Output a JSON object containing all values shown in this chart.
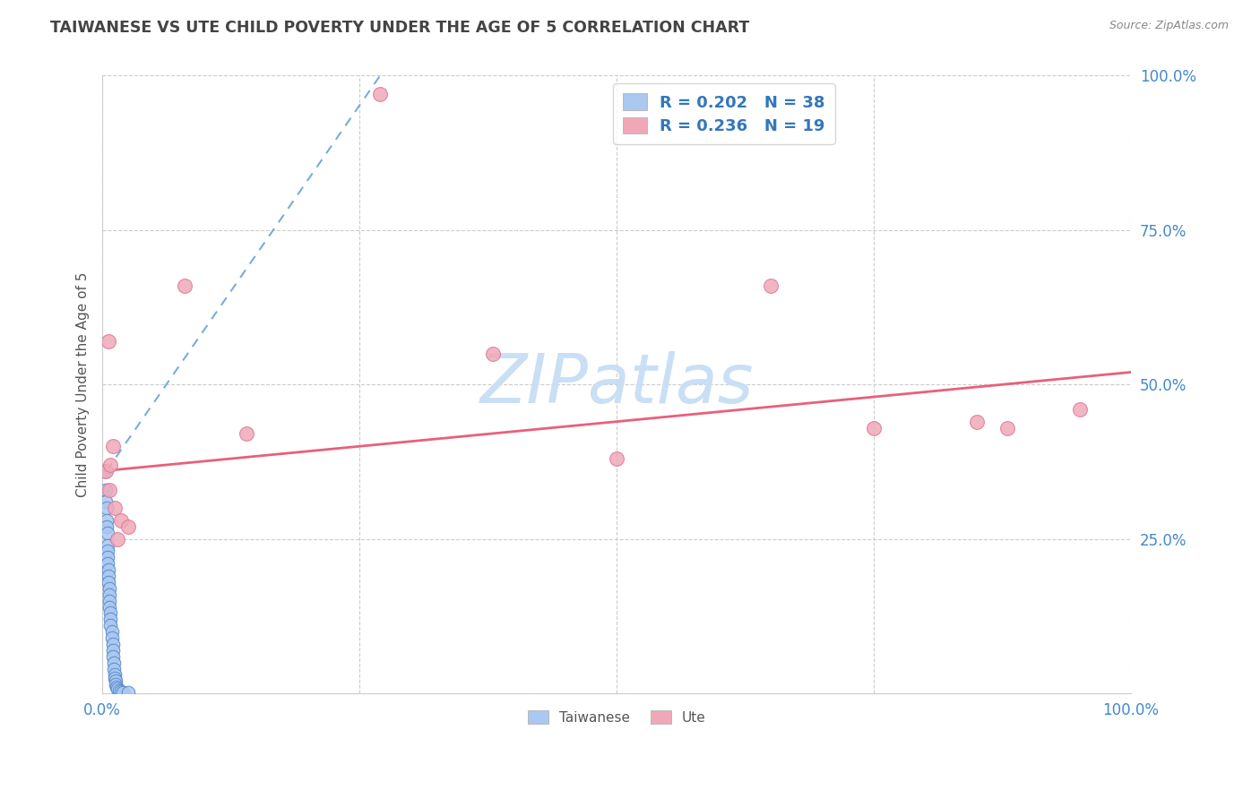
{
  "title": "TAIWANESE VS UTE CHILD POVERTY UNDER THE AGE OF 5 CORRELATION CHART",
  "source": "Source: ZipAtlas.com",
  "ylabel": "Child Poverty Under the Age of 5",
  "xlim": [
    0,
    1
  ],
  "ylim": [
    0,
    1
  ],
  "xticks": [
    0.0,
    0.25,
    0.5,
    0.75,
    1.0
  ],
  "yticks": [
    0.0,
    0.25,
    0.5,
    0.75,
    1.0
  ],
  "xtick_labels_bottom": [
    "0.0%",
    "",
    "",
    "",
    "100.0%"
  ],
  "ytick_labels_right": [
    "",
    "25.0%",
    "50.0%",
    "75.0%",
    "100.0%"
  ],
  "taiwanese_R": 0.202,
  "taiwanese_N": 38,
  "ute_R": 0.236,
  "ute_N": 19,
  "taiwanese_color": "#aac8f0",
  "ute_color": "#f0a8b8",
  "taiwanese_edge": "#5588cc",
  "ute_edge": "#dd7799",
  "trend_blue": "#7aabdd",
  "trend_pink": "#e8607a",
  "legend_text_color": "#3377bb",
  "title_color": "#444444",
  "background_color": "#ffffff",
  "grid_color": "#cccccc",
  "watermark_color": "#c8dff5",
  "tw_x": [
    0.002,
    0.003,
    0.003,
    0.004,
    0.004,
    0.004,
    0.005,
    0.005,
    0.005,
    0.005,
    0.005,
    0.006,
    0.006,
    0.006,
    0.007,
    0.007,
    0.007,
    0.007,
    0.008,
    0.008,
    0.008,
    0.009,
    0.009,
    0.01,
    0.01,
    0.01,
    0.011,
    0.011,
    0.012,
    0.012,
    0.013,
    0.013,
    0.014,
    0.015,
    0.016,
    0.018,
    0.02,
    0.025
  ],
  "tw_y": [
    0.36,
    0.33,
    0.31,
    0.3,
    0.28,
    0.27,
    0.26,
    0.24,
    0.23,
    0.22,
    0.21,
    0.2,
    0.19,
    0.18,
    0.17,
    0.16,
    0.15,
    0.14,
    0.13,
    0.12,
    0.11,
    0.1,
    0.09,
    0.08,
    0.07,
    0.06,
    0.05,
    0.04,
    0.03,
    0.025,
    0.02,
    0.015,
    0.01,
    0.008,
    0.005,
    0.003,
    0.002,
    0.001
  ],
  "ute_x": [
    0.003,
    0.006,
    0.007,
    0.008,
    0.01,
    0.012,
    0.015,
    0.018,
    0.025,
    0.08,
    0.14,
    0.27,
    0.38,
    0.5,
    0.65,
    0.75,
    0.85,
    0.88,
    0.95
  ],
  "ute_y": [
    0.36,
    0.57,
    0.33,
    0.37,
    0.4,
    0.3,
    0.25,
    0.28,
    0.27,
    0.66,
    0.42,
    0.97,
    0.55,
    0.38,
    0.66,
    0.43,
    0.44,
    0.43,
    0.46
  ],
  "tw_trend_x": [
    0.004,
    0.27
  ],
  "tw_trend_y": [
    0.36,
    1.0
  ],
  "ute_trend_x": [
    0.0,
    1.0
  ],
  "ute_trend_y": [
    0.36,
    0.52
  ]
}
